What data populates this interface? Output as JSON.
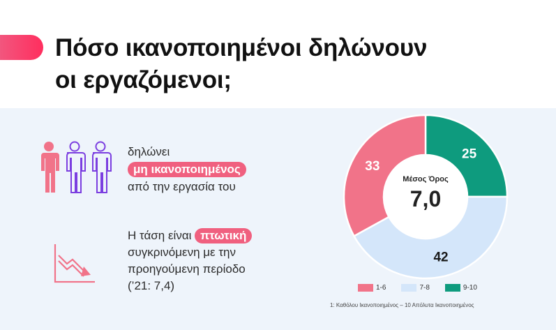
{
  "title": {
    "line1": "Πόσο ικανοποιημένοι δηλώνουν",
    "line2": "οι εργαζόμενοι;"
  },
  "statement1": {
    "before": "δηλώνει",
    "highlight": "μη ικανοποιημένος",
    "after": "από την εργασία του"
  },
  "statement2": {
    "line1_before": "Η τάση είναι ",
    "line1_highlight": "πτωτική",
    "line2": "συγκρινόμενη με την",
    "line3": "προηγούμενη περίοδο",
    "line4": "(’21: 7,4)"
  },
  "colors": {
    "pink": "#f17389",
    "light_blue": "#d4e6fa",
    "green": "#0e9b7e",
    "accent": "#f0607f"
  },
  "chart_data": {
    "type": "pie",
    "variant": "donut",
    "center_label": "Μέσος Όρος",
    "center_value": "7,0",
    "slices": [
      {
        "label": "9-10",
        "value": 25,
        "color": "#0e9b7e"
      },
      {
        "label": "7-8",
        "value": 42,
        "color": "#d4e6fa"
      },
      {
        "label": "1-6",
        "value": 33,
        "color": "#f17389"
      }
    ],
    "legend": [
      "1-6",
      "7-8",
      "9-10"
    ],
    "legend_position": "bottom"
  },
  "footnote": "1: Καθόλου Ικανοποιημένος – 10 Απόλυτα Ικανοποιημένος"
}
